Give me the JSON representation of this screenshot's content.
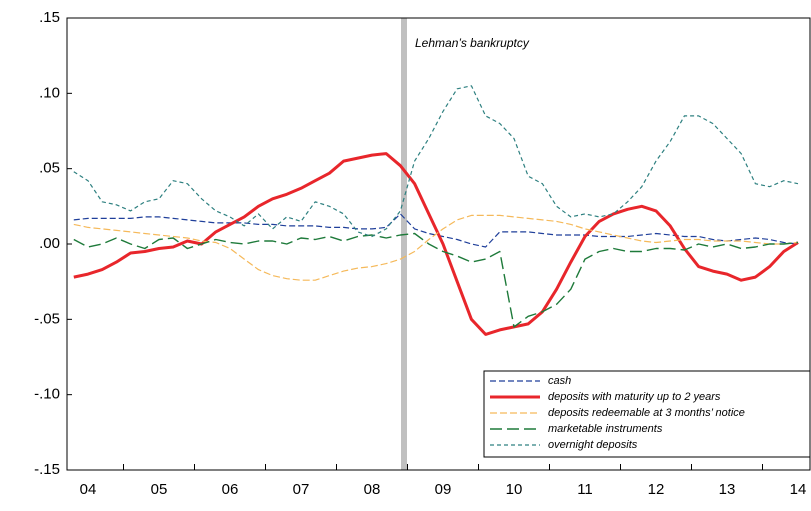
{
  "chart_data": {
    "type": "line",
    "annotation": "Lehman’s bankruptcy",
    "categories": [
      null,
      "04",
      null,
      null,
      null,
      null,
      "05",
      null,
      null,
      null,
      null,
      "06",
      null,
      null,
      null,
      null,
      "07",
      null,
      null,
      null,
      null,
      "08",
      null,
      null,
      null,
      null,
      "09",
      null,
      null,
      null,
      null,
      "10",
      null,
      null,
      null,
      null,
      "11",
      null,
      null,
      null,
      null,
      "12",
      null,
      null,
      null,
      null,
      "13",
      null,
      null,
      null,
      null,
      "14"
    ],
    "series": [
      {
        "name": "cash",
        "color": "#1f3f9a",
        "values": [
          0.016,
          0.017,
          0.017,
          0.017,
          0.017,
          0.018,
          0.018,
          0.017,
          0.016,
          0.015,
          0.014,
          0.014,
          0.014,
          0.013,
          0.013,
          0.012,
          0.012,
          0.012,
          0.011,
          0.011,
          0.01,
          0.01,
          0.011,
          0.02,
          0.01,
          0.007,
          0.005,
          0.003,
          0.0,
          -0.002,
          0.008,
          0.008,
          0.008,
          0.007,
          0.006,
          0.006,
          0.006,
          0.005,
          0.005,
          0.005,
          0.006,
          0.007,
          0.006,
          0.005,
          0.005,
          0.003,
          0.002,
          0.003,
          0.004,
          0.003,
          0.001,
          0.0
        ]
      },
      {
        "name": "deposits with maturity up to 2 years",
        "color": "#e8262b",
        "values": [
          -0.022,
          -0.02,
          -0.017,
          -0.012,
          -0.006,
          -0.005,
          -0.003,
          -0.002,
          0.002,
          0.0,
          0.008,
          0.013,
          0.018,
          0.025,
          0.03,
          0.033,
          0.037,
          0.042,
          0.047,
          0.055,
          0.057,
          0.059,
          0.06,
          0.052,
          0.04,
          0.02,
          0.0,
          -0.025,
          -0.05,
          -0.06,
          -0.057,
          -0.055,
          -0.053,
          -0.045,
          -0.03,
          -0.012,
          0.005,
          0.015,
          0.02,
          0.023,
          0.025,
          0.022,
          0.012,
          -0.003,
          -0.015,
          -0.018,
          -0.02,
          -0.024,
          -0.022,
          -0.015,
          -0.005,
          0.001
        ]
      },
      {
        "name": "deposits redeemable at 3 months’ notice",
        "color": "#f5b95a",
        "values": [
          0.013,
          0.011,
          0.01,
          0.009,
          0.008,
          0.007,
          0.006,
          0.005,
          0.004,
          0.002,
          0.001,
          -0.003,
          -0.01,
          -0.017,
          -0.021,
          -0.023,
          -0.024,
          -0.024,
          -0.021,
          -0.018,
          -0.016,
          -0.015,
          -0.013,
          -0.01,
          -0.005,
          0.003,
          0.01,
          0.016,
          0.019,
          0.019,
          0.019,
          0.018,
          0.017,
          0.016,
          0.015,
          0.013,
          0.01,
          0.008,
          0.006,
          0.004,
          0.002,
          0.001,
          0.002,
          0.003,
          0.003,
          0.002,
          0.002,
          0.002,
          0.001,
          0.0,
          0.0,
          0.001
        ]
      },
      {
        "name": "marketable instruments",
        "color": "#1e7a3a",
        "values": [
          0.003,
          -0.002,
          0.0,
          0.004,
          0.0,
          -0.003,
          0.003,
          0.004,
          -0.003,
          0.0,
          0.003,
          0.001,
          0.0,
          0.002,
          0.002,
          0.0,
          0.004,
          0.003,
          0.005,
          0.002,
          0.005,
          0.006,
          0.004,
          0.006,
          0.007,
          0.0,
          -0.005,
          -0.008,
          -0.012,
          -0.01,
          -0.005,
          -0.055,
          -0.048,
          -0.045,
          -0.04,
          -0.03,
          -0.01,
          -0.005,
          -0.003,
          -0.005,
          -0.005,
          -0.003,
          -0.003,
          -0.004,
          0.0,
          -0.002,
          0.0,
          -0.003,
          -0.002,
          0.0,
          0.0,
          0.001
        ]
      },
      {
        "name": "overnight deposits",
        "color": "#2e8080",
        "values": [
          0.048,
          0.042,
          0.028,
          0.026,
          0.022,
          0.028,
          0.03,
          0.042,
          0.04,
          0.03,
          0.022,
          0.018,
          0.012,
          0.02,
          0.01,
          0.018,
          0.015,
          0.028,
          0.025,
          0.02,
          0.008,
          0.005,
          0.01,
          0.022,
          0.055,
          0.07,
          0.088,
          0.103,
          0.105,
          0.085,
          0.08,
          0.07,
          0.045,
          0.04,
          0.025,
          0.018,
          0.02,
          0.018,
          0.02,
          0.028,
          0.038,
          0.055,
          0.068,
          0.085,
          0.085,
          0.08,
          0.07,
          0.06,
          0.04,
          0.038,
          0.042,
          0.04
        ]
      }
    ],
    "ylim": [
      -0.15,
      0.15
    ],
    "yticks": [
      {
        "value": -0.15,
        "label": "-.15"
      },
      {
        "value": -0.1,
        "label": "-.10"
      },
      {
        "value": -0.05,
        "label": "-.05"
      },
      {
        "value": 0,
        "label": ".00"
      },
      {
        "value": 0.05,
        "label": ".05"
      },
      {
        "value": 0.1,
        "label": ".10"
      },
      {
        "value": 0.15,
        "label": ".15"
      }
    ],
    "legend": "lower right"
  }
}
